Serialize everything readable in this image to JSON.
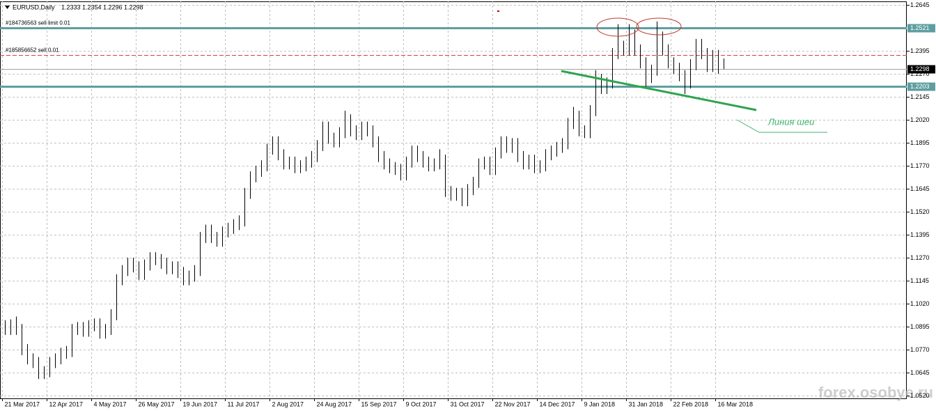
{
  "chart_data": {
    "type": "candlestick",
    "title": "EURUSD,Daily",
    "ohlc": [
      1.2333,
      1.2354,
      1.2296,
      1.2298
    ],
    "categories": [
      "21 Mar 2017",
      null,
      null,
      null,
      null,
      null,
      null,
      null,
      "12 Apr 2017",
      null,
      null,
      null,
      null,
      null,
      null,
      null,
      "4 May 2017",
      null,
      null,
      null,
      null,
      null,
      null,
      null,
      "26 May 2017",
      null,
      null,
      null,
      null,
      null,
      null,
      null,
      "19 Jun 2017",
      null,
      null,
      null,
      null,
      null,
      null,
      null,
      "11 Jul 2017",
      null,
      null,
      null,
      null,
      null,
      null,
      null,
      "2 Aug 2017",
      null,
      null,
      null,
      null,
      null,
      null,
      null,
      "24 Aug 2017",
      null,
      null,
      null,
      null,
      null,
      null,
      null,
      "15 Sep 2017",
      null,
      null,
      null,
      null,
      null,
      null,
      null,
      "9 Oct 2017",
      null,
      null,
      null,
      null,
      null,
      null,
      null,
      "31 Oct 2017",
      null,
      null,
      null,
      null,
      null,
      null,
      null,
      "22 Nov 2017",
      null,
      null,
      null,
      null,
      null,
      null,
      null,
      "14 Dec 2017",
      null,
      null,
      null,
      null,
      null,
      null,
      null,
      "9 Jan 2018",
      null,
      null,
      null,
      null,
      null,
      null,
      null,
      "31 Jan 2018",
      null,
      null,
      null,
      null,
      null,
      null,
      null,
      "22 Feb 2018",
      null,
      null,
      null,
      null,
      null,
      null,
      null,
      "16 Mar 2018",
      null
    ],
    "open": [
      1.09,
      1.088,
      1.0905,
      1.088,
      1.077,
      1.072,
      1.07,
      1.064,
      1.065,
      1.07,
      1.072,
      1.075,
      1.076,
      1.088,
      1.089,
      1.087,
      1.09,
      1.091,
      1.086,
      1.088,
      1.096,
      1.115,
      1.12,
      1.124,
      1.122,
      1.118,
      1.123,
      1.127,
      1.126,
      1.124,
      1.121,
      1.122,
      1.119,
      1.115,
      1.117,
      1.12,
      1.138,
      1.142,
      1.138,
      1.136,
      1.141,
      1.143,
      1.145,
      1.147,
      1.162,
      1.171,
      1.174,
      1.177,
      1.186,
      1.19,
      1.183,
      1.178,
      1.179,
      1.176,
      1.177,
      1.179,
      1.182,
      1.188,
      1.198,
      1.192,
      1.19,
      1.195,
      1.202,
      1.196,
      1.194,
      1.198,
      1.196,
      1.19,
      1.182,
      1.178,
      1.176,
      1.175,
      1.172,
      1.179,
      1.185,
      1.182,
      1.179,
      1.177,
      1.178,
      1.18,
      1.163,
      1.161,
      1.162,
      1.158,
      1.164,
      1.168,
      1.178,
      1.179,
      1.175,
      1.184,
      1.19,
      1.187,
      1.189,
      1.182,
      1.178,
      1.18,
      1.176,
      1.177,
      1.183,
      1.185,
      1.187,
      1.189,
      1.2,
      1.204,
      1.196,
      1.195,
      1.207,
      1.224,
      1.219,
      1.222,
      1.238,
      1.242,
      1.24,
      1.248,
      1.24,
      1.233,
      1.225,
      1.229,
      1.247,
      1.24,
      1.233,
      1.23,
      1.226,
      1.222,
      1.232,
      1.243,
      1.238,
      1.231,
      1.237,
      1.2333
    ],
    "high": [
      1.093,
      1.0935,
      1.095,
      1.091,
      1.08,
      1.075,
      1.073,
      1.068,
      1.073,
      1.075,
      1.078,
      1.079,
      1.091,
      1.092,
      1.092,
      1.093,
      1.094,
      1.094,
      1.091,
      1.099,
      1.118,
      1.123,
      1.127,
      1.127,
      1.125,
      1.126,
      1.13,
      1.13,
      1.129,
      1.127,
      1.125,
      1.125,
      1.122,
      1.12,
      1.123,
      1.141,
      1.145,
      1.145,
      1.141,
      1.144,
      1.146,
      1.148,
      1.15,
      1.165,
      1.174,
      1.177,
      1.18,
      1.189,
      1.193,
      1.193,
      1.186,
      1.182,
      1.182,
      1.18,
      1.182,
      1.185,
      1.191,
      1.201,
      1.201,
      1.195,
      1.198,
      1.207,
      1.205,
      1.199,
      1.201,
      1.201,
      1.199,
      1.193,
      1.185,
      1.181,
      1.179,
      1.178,
      1.182,
      1.188,
      1.188,
      1.185,
      1.182,
      1.181,
      1.186,
      1.183,
      1.166,
      1.165,
      1.165,
      1.167,
      1.171,
      1.181,
      1.182,
      1.182,
      1.187,
      1.193,
      1.193,
      1.192,
      1.192,
      1.185,
      1.183,
      1.183,
      1.18,
      1.186,
      1.188,
      1.19,
      1.192,
      1.203,
      1.209,
      1.207,
      1.199,
      1.21,
      1.229,
      1.227,
      1.225,
      1.241,
      1.254,
      1.245,
      1.254,
      1.251,
      1.243,
      1.236,
      1.232,
      1.2555,
      1.25,
      1.243,
      1.236,
      1.233,
      1.229,
      1.235,
      1.246,
      1.246,
      1.241,
      1.24,
      1.24,
      1.2354
    ],
    "low": [
      1.085,
      1.085,
      1.085,
      1.074,
      1.069,
      1.067,
      1.061,
      1.061,
      1.062,
      1.067,
      1.069,
      1.072,
      1.073,
      1.085,
      1.084,
      1.084,
      1.087,
      1.083,
      1.083,
      1.085,
      1.093,
      1.112,
      1.117,
      1.119,
      1.115,
      1.115,
      1.12,
      1.123,
      1.121,
      1.118,
      1.118,
      1.116,
      1.112,
      1.112,
      1.114,
      1.117,
      1.135,
      1.135,
      1.133,
      1.133,
      1.138,
      1.14,
      1.142,
      1.144,
      1.159,
      1.168,
      1.171,
      1.174,
      1.183,
      1.18,
      1.175,
      1.175,
      1.173,
      1.173,
      1.174,
      1.176,
      1.179,
      1.185,
      1.189,
      1.187,
      1.187,
      1.192,
      1.193,
      1.191,
      1.191,
      1.193,
      1.187,
      1.179,
      1.175,
      1.173,
      1.172,
      1.169,
      1.169,
      1.176,
      1.179,
      1.176,
      1.174,
      1.174,
      1.175,
      1.16,
      1.158,
      1.158,
      1.155,
      1.155,
      1.161,
      1.165,
      1.175,
      1.172,
      1.172,
      1.181,
      1.184,
      1.184,
      1.179,
      1.175,
      1.175,
      1.173,
      1.173,
      1.174,
      1.18,
      1.182,
      1.184,
      1.186,
      1.197,
      1.193,
      1.192,
      1.192,
      1.204,
      1.216,
      1.216,
      1.219,
      1.235,
      1.237,
      1.237,
      1.237,
      1.23,
      1.22,
      1.222,
      1.226,
      1.237,
      1.23,
      1.227,
      1.223,
      1.216,
      1.219,
      1.229,
      1.235,
      1.228,
      1.228,
      1.227,
      1.2296
    ],
    "ylim": [
      1.0505,
      1.2664
    ],
    "yticks": [
      1.2645,
      1.2395,
      {
        "value": 1.227,
        "label": "1.2270"
      },
      1.2145,
      {
        "value": 1.202,
        "label": "1.2020"
      },
      1.1895,
      {
        "value": 1.177,
        "label": "1.1770"
      },
      1.1645,
      {
        "value": 1.152,
        "label": "1.1520"
      },
      1.1395,
      {
        "value": 1.127,
        "label": "1.1270"
      },
      1.1145,
      {
        "value": 1.102,
        "label": "1.1020"
      },
      1.0895,
      {
        "value": 1.077,
        "label": "1.0770"
      },
      1.0645,
      {
        "value": 1.052,
        "label": "1.0520"
      }
    ],
    "levels": [
      1.2521,
      1.2203
    ],
    "level_color": "#5f9ea0",
    "orders": [
      {
        "label": "#184736563 sell limit 0.01",
        "price": 1.2521
      },
      {
        "label": "#185856652 sell 0.01",
        "price": 1.2374
      }
    ],
    "annotation": "Линия шеи",
    "watermark": "forex.osobye.ru",
    "grid": true
  }
}
